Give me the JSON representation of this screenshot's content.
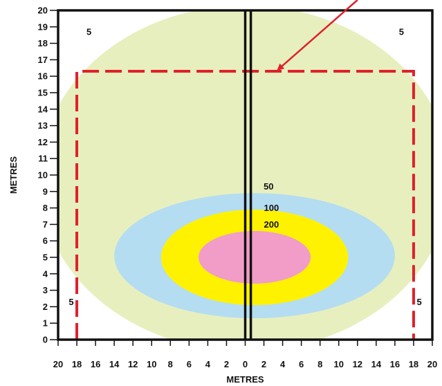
{
  "chart_data": {
    "type": "contour",
    "xlabel": "METRES",
    "ylabel": "METRES",
    "xlim": [
      -20,
      20
    ],
    "ylim": [
      0,
      20
    ],
    "x_ticks": [
      -20,
      -18,
      -16,
      -14,
      -12,
      -10,
      -8,
      -6,
      -4,
      -2,
      0,
      2,
      4,
      6,
      8,
      10,
      12,
      14,
      16,
      18,
      20
    ],
    "x_tick_labels": [
      "20",
      "18",
      "16",
      "14",
      "12",
      "10",
      "8",
      "6",
      "4",
      "2",
      "0",
      "2",
      "4",
      "6",
      "8",
      "10",
      "12",
      "14",
      "16",
      "18",
      "20"
    ],
    "y_ticks": [
      0,
      1,
      2,
      3,
      4,
      5,
      6,
      7,
      8,
      9,
      10,
      11,
      12,
      13,
      14,
      15,
      16,
      17,
      18,
      19,
      20
    ],
    "y_tick_labels": [
      "0",
      "1",
      "2",
      "3",
      "4",
      "5",
      "6",
      "7",
      "8",
      "9",
      "10",
      "11",
      "12",
      "13",
      "14",
      "15",
      "16",
      "17",
      "18",
      "19",
      "20"
    ],
    "zones": [
      {
        "label": "5",
        "color": "#e8efbe",
        "center": [
          0,
          9.8
        ],
        "half_width": 22,
        "half_height": 10.5
      },
      {
        "label": "100",
        "color": "#b4ddf2",
        "center": [
          1,
          5.1
        ],
        "half_width": 15,
        "half_height": 3.8
      },
      {
        "label": "200",
        "color": "#fff200",
        "center": [
          1,
          5.0
        ],
        "half_width": 10,
        "half_height": 2.9
      },
      {
        "label": "",
        "color": "#f29cc8",
        "center": [
          1,
          5.0
        ],
        "half_width": 6,
        "half_height": 1.6
      }
    ],
    "value_labels": [
      {
        "text": "50",
        "x": 2.5,
        "y": 9.3
      },
      {
        "text": "100",
        "x": 2.8,
        "y": 8.0
      },
      {
        "text": "200",
        "x": 2.8,
        "y": 7.0
      },
      {
        "text": "5",
        "x": -16.7,
        "y": 18.7
      },
      {
        "text": "5",
        "x": 16.7,
        "y": 18.7
      },
      {
        "text": "5",
        "x": -18.6,
        "y": 2.3
      },
      {
        "text": "5",
        "x": 18.6,
        "y": 2.3
      }
    ],
    "dashed_boundary": {
      "x_range": [
        -18,
        18
      ],
      "y_range": [
        0,
        16.3
      ],
      "color": "#e0202a"
    },
    "centre_lines_x": [
      0,
      0.6
    ],
    "arrow": {
      "from": [
        12,
        21.5
      ],
      "to": [
        3.5,
        16.4
      ],
      "color": "#e0202a"
    }
  }
}
